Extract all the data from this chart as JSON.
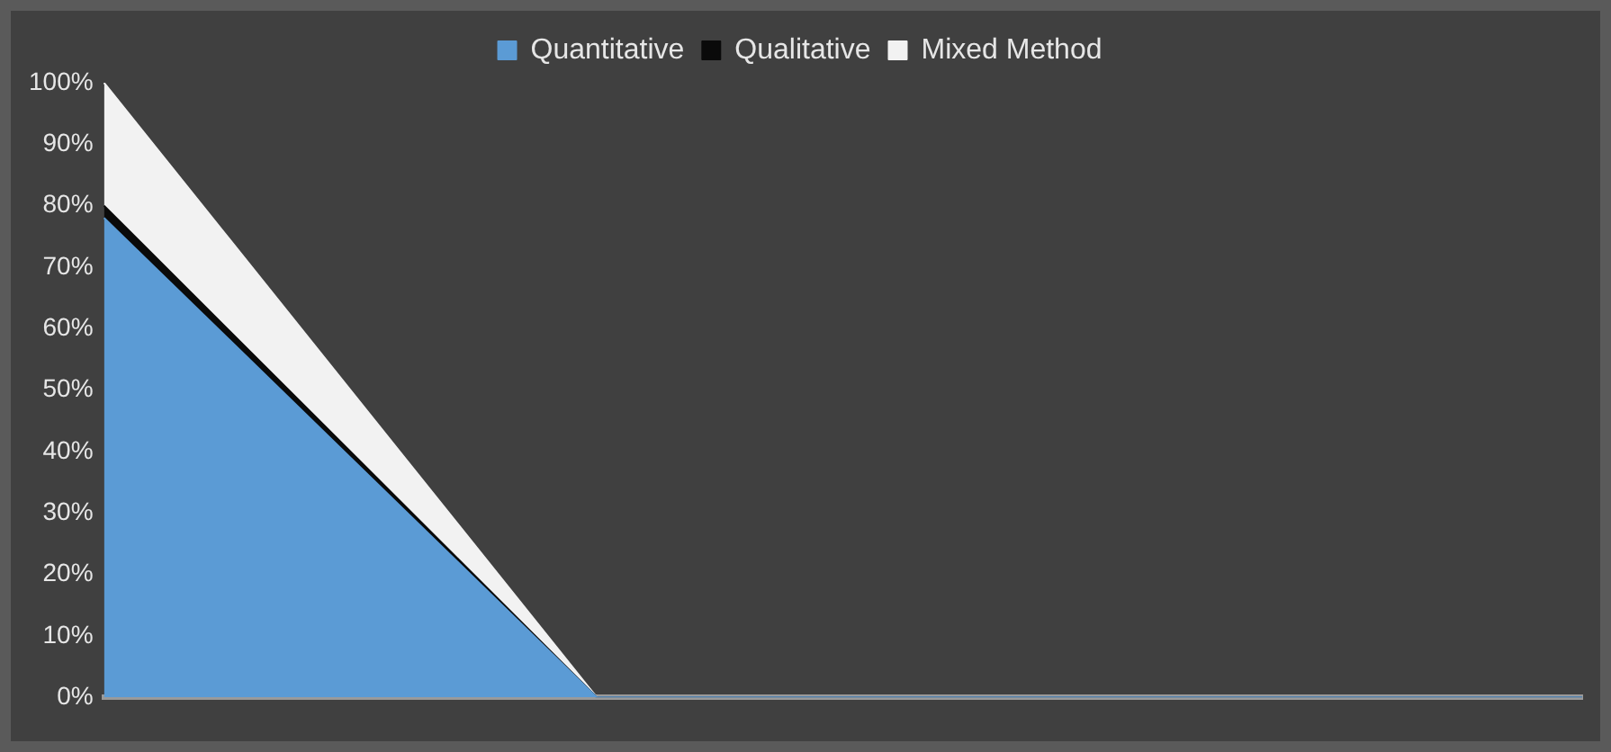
{
  "chart_data": {
    "type": "area",
    "stacked": true,
    "legend": "top",
    "grid": false,
    "categories": [
      null,
      null,
      null,
      null
    ],
    "ylim": [
      0,
      100
    ],
    "yticks": [
      {
        "value": 0,
        "label": "0%"
      },
      {
        "value": 10,
        "label": "10%"
      },
      {
        "value": 20,
        "label": "20%"
      },
      {
        "value": 30,
        "label": "30%"
      },
      {
        "value": 40,
        "label": "40%"
      },
      {
        "value": 50,
        "label": "50%"
      },
      {
        "value": 60,
        "label": "60%"
      },
      {
        "value": 70,
        "label": "70%"
      },
      {
        "value": 80,
        "label": "80%"
      },
      {
        "value": 90,
        "label": "90%"
      },
      {
        "value": 100,
        "label": "100%"
      }
    ],
    "series": [
      {
        "name": "Quantitative",
        "color": "#5b9bd5",
        "values": [
          78,
          0,
          0,
          0
        ]
      },
      {
        "name": "Qualitative",
        "color": "#0a0a0a",
        "values": [
          2,
          0,
          0,
          0
        ]
      },
      {
        "name": "Mixed Method",
        "color": "#f2f2f2",
        "values": [
          20,
          0,
          0,
          0
        ]
      }
    ]
  }
}
